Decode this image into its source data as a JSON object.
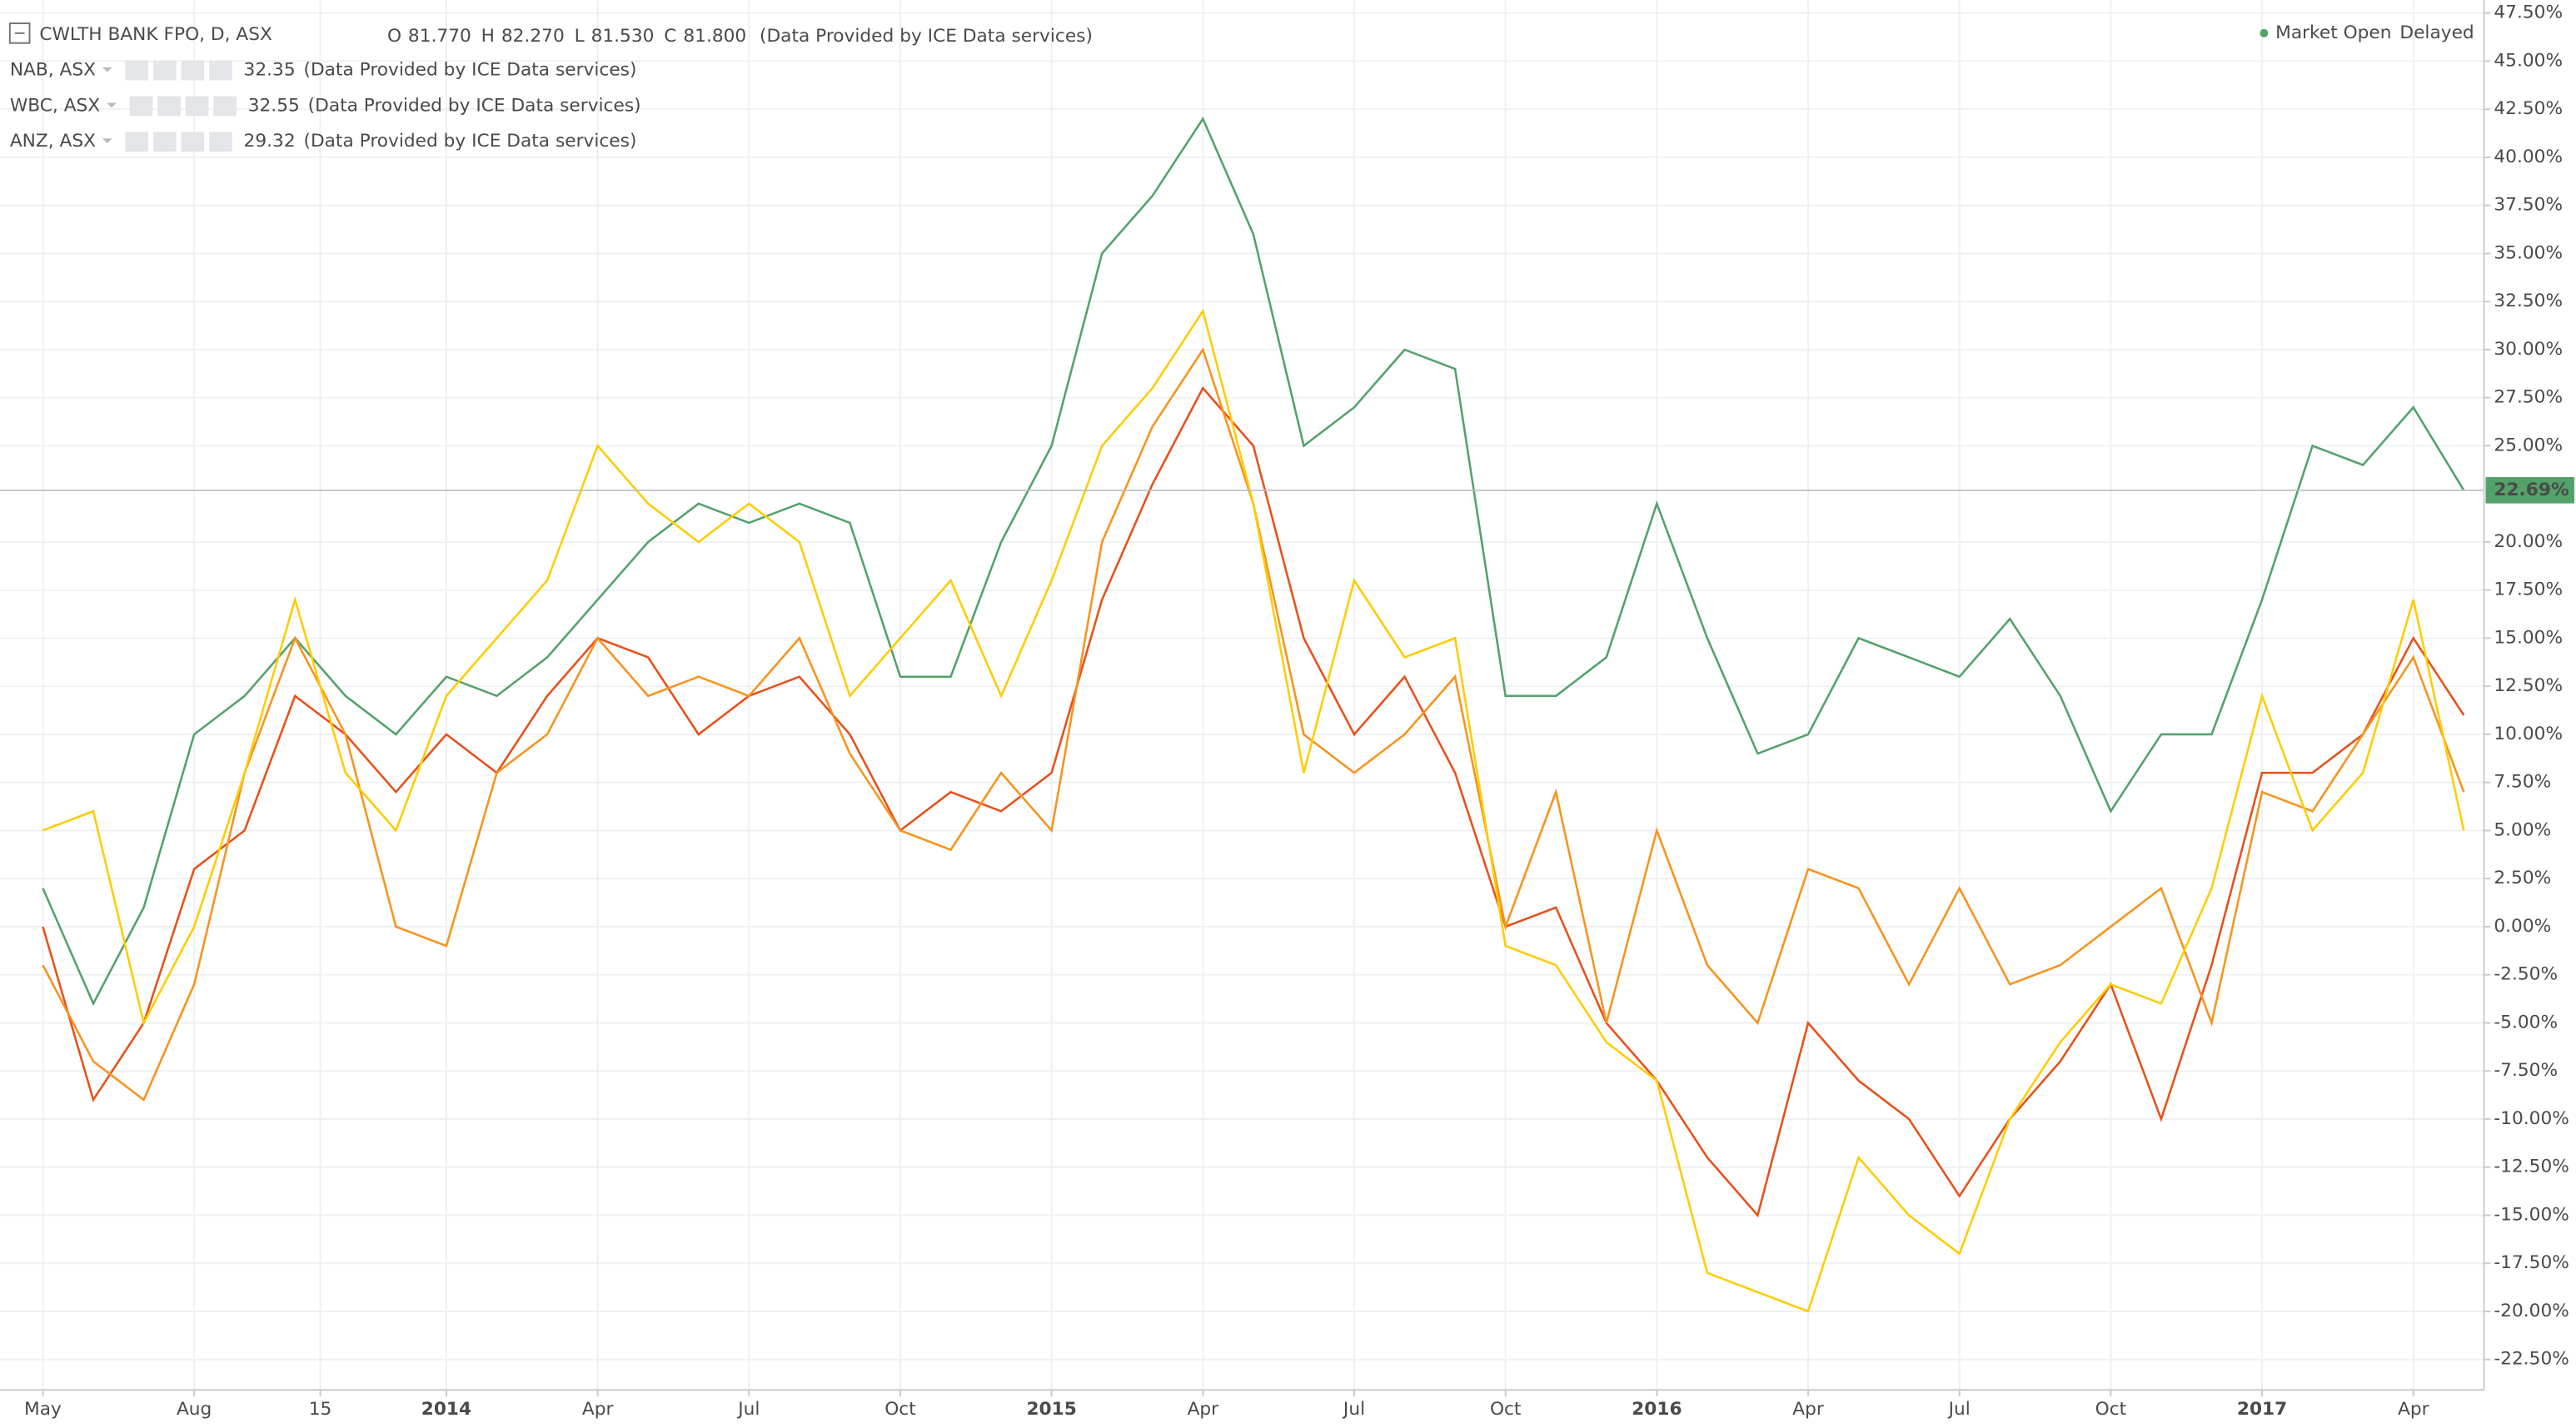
{
  "chart_data": {
    "type": "line",
    "header": {
      "ohlc": [
        {
          "key": "O",
          "text": "81.770"
        },
        {
          "key": "H",
          "text": "82.270"
        },
        {
          "key": "L",
          "text": "81.530"
        },
        {
          "key": "C",
          "text": "81.800"
        }
      ],
      "market_status": "Market Open",
      "delay": "Delayed"
    },
    "x": [
      0,
      1,
      2,
      3,
      4,
      5,
      6,
      7,
      8,
      9,
      10,
      11,
      12,
      13,
      14,
      15,
      16,
      17,
      18,
      19,
      20,
      21,
      22,
      23,
      24,
      25,
      26,
      27,
      28,
      29,
      30,
      31,
      32,
      33,
      34,
      35,
      36,
      37,
      38,
      39,
      40,
      41,
      42,
      43,
      44,
      45,
      46,
      47,
      48
    ],
    "xlim": [
      -0.85,
      48.4
    ],
    "xticks": [
      {
        "value": 0,
        "label": "May"
      },
      {
        "value": 3,
        "label": "Aug"
      },
      {
        "value": 5.5,
        "label": "15"
      },
      {
        "value": 8,
        "label": "2014"
      },
      {
        "value": 11,
        "label": "Apr"
      },
      {
        "value": 14,
        "label": "Jul"
      },
      {
        "value": 17,
        "label": "Oct"
      },
      {
        "value": 20,
        "label": "2015"
      },
      {
        "value": 23,
        "label": "Apr"
      },
      {
        "value": 26,
        "label": "Jul"
      },
      {
        "value": 29,
        "label": "Oct"
      },
      {
        "value": 32,
        "label": "2016"
      },
      {
        "value": 35,
        "label": "Apr"
      },
      {
        "value": 38,
        "label": "Jul"
      },
      {
        "value": 41,
        "label": "Oct"
      },
      {
        "value": 44,
        "label": "2017"
      },
      {
        "value": 47,
        "label": "Apr"
      }
    ],
    "ylim": [
      -24.08,
      48.16
    ],
    "yticks": [
      {
        "value": 47.5,
        "label": "47.50%"
      },
      {
        "value": 45,
        "label": "45.00%"
      },
      {
        "value": 42.5,
        "label": "42.50%"
      },
      {
        "value": 40,
        "label": "40.00%"
      },
      {
        "value": 37.5,
        "label": "37.50%"
      },
      {
        "value": 35,
        "label": "35.00%"
      },
      {
        "value": 32.5,
        "label": "32.50%"
      },
      {
        "value": 30,
        "label": "30.00%"
      },
      {
        "value": 27.5,
        "label": "27.50%"
      },
      {
        "value": 25,
        "label": "25.00%"
      },
      {
        "value": 20,
        "label": "20.00%"
      },
      {
        "value": 17.5,
        "label": "17.50%"
      },
      {
        "value": 15,
        "label": "15.00%"
      },
      {
        "value": 12.5,
        "label": "12.50%"
      },
      {
        "value": 10,
        "label": "10.00%"
      },
      {
        "value": 7.5,
        "label": "7.50%"
      },
      {
        "value": 5,
        "label": "5.00%"
      },
      {
        "value": 2.5,
        "label": "2.50%"
      },
      {
        "value": 0,
        "label": "0.00%"
      },
      {
        "value": -2.5,
        "label": "-2.50%"
      },
      {
        "value": -5,
        "label": "-5.00%"
      },
      {
        "value": -7.5,
        "label": "-7.50%"
      },
      {
        "value": -10,
        "label": "-10.00%"
      },
      {
        "value": -12.5,
        "label": "-12.50%"
      },
      {
        "value": -15,
        "label": "-15.00%"
      },
      {
        "value": -17.5,
        "label": "-17.50%"
      },
      {
        "value": -20,
        "label": "-20.00%"
      },
      {
        "value": -22.5,
        "label": "-22.50%"
      }
    ],
    "grid": true,
    "series": [
      {
        "name": "CWLTH BANK FPO, D, ASX",
        "color": "#53a26a",
        "source": "(Data Provided by ICE Data services)",
        "last_value": 22.69,
        "last_value_label": "22.69%",
        "values": [
          2,
          -4,
          1,
          10,
          12,
          15,
          12,
          10,
          13,
          12,
          14,
          17,
          20,
          22,
          21,
          22,
          21,
          13,
          13,
          20,
          25,
          35,
          38,
          42,
          36,
          25,
          27,
          30,
          29,
          12,
          12,
          14,
          22,
          15,
          9,
          10,
          15,
          14,
          13,
          16,
          12,
          6,
          10,
          10,
          17,
          25,
          24,
          27,
          22.69
        ]
      },
      {
        "name": "NAB, ASX",
        "color": "#e8501a",
        "legend_value": "32.35",
        "source": "(Data Provided by ICE Data services)",
        "values": [
          0,
          -9,
          -5,
          3,
          5,
          12,
          10,
          7,
          10,
          8,
          12,
          15,
          14,
          10,
          12,
          13,
          10,
          5,
          7,
          6,
          8,
          17,
          23,
          28,
          25,
          15,
          10,
          13,
          8,
          0,
          1,
          -5,
          -8,
          -12,
          -15,
          -5,
          -8,
          -10,
          -14,
          -10,
          -7,
          -3,
          -10,
          -2,
          8,
          8,
          10,
          15,
          11
        ]
      },
      {
        "name": "WBC, ASX",
        "color": "#f7931e",
        "legend_value": "32.55",
        "source": "(Data Provided by ICE Data services)",
        "values": [
          -2,
          -7,
          -9,
          -3,
          8,
          15,
          10,
          0,
          -1,
          8,
          10,
          15,
          12,
          13,
          12,
          15,
          9,
          5,
          4,
          8,
          5,
          20,
          26,
          30,
          22,
          10,
          8,
          10,
          13,
          0,
          7,
          -5,
          5,
          -2,
          -5,
          3,
          2,
          -3,
          2,
          -3,
          -2,
          0,
          2,
          -5,
          7,
          6,
          10,
          14,
          7
        ]
      },
      {
        "name": "ANZ, ASX",
        "color": "#ffcc00",
        "legend_value": "29.32",
        "source": "(Data Provided by ICE Data services)",
        "values": [
          5,
          6,
          -5,
          0,
          8,
          17,
          8,
          5,
          12,
          15,
          18,
          25,
          22,
          20,
          22,
          20,
          12,
          15,
          18,
          12,
          18,
          25,
          28,
          32,
          22,
          8,
          18,
          14,
          15,
          -1,
          -2,
          -6,
          -8,
          -18,
          -19,
          -20,
          -12,
          -15,
          -17,
          -10,
          -6,
          -3,
          -4,
          2,
          12,
          5,
          8,
          17,
          5
        ]
      }
    ]
  }
}
